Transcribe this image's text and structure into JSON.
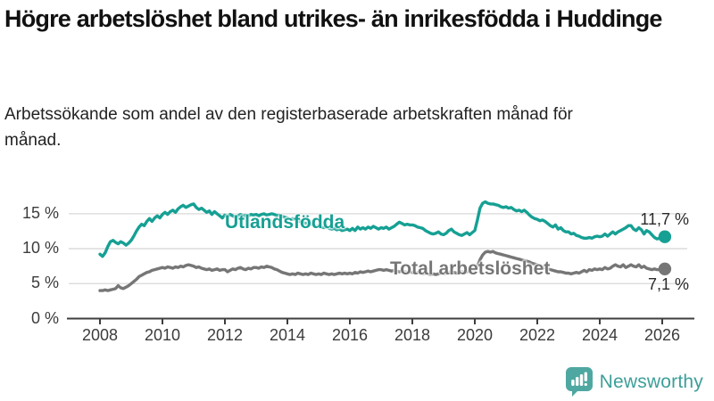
{
  "header": {
    "title": "Högre arbetslöshet bland utrikes- än inrikesfödda i Huddinge",
    "subtitle": "Arbetssökande som andel av den registerbaserade arbetskraften månad för månad."
  },
  "chart_data": {
    "type": "line",
    "x_start_year": 2008,
    "x_start_month": 1,
    "frequency": "monthly",
    "x_ticks": [
      2008,
      2010,
      2012,
      2014,
      2016,
      2018,
      2020,
      2022,
      2024,
      2026
    ],
    "y_ticks": [
      {
        "label": "0 %",
        "value": 0
      },
      {
        "label": "5 %",
        "value": 5
      },
      {
        "label": "10 %",
        "value": 10
      },
      {
        "label": "15 %",
        "value": 15
      }
    ],
    "ylim": [
      0,
      17.5
    ],
    "grid": "horizontal",
    "legend_position": "inline-labels",
    "series": [
      {
        "name": "Utlandsfödda",
        "color": "#16A094",
        "end_label": "11,7 %",
        "end_value": 11.7,
        "values": [
          9.2,
          8.9,
          9.4,
          10.3,
          11.0,
          11.2,
          10.9,
          10.7,
          11.0,
          10.8,
          10.5,
          10.8,
          11.2,
          11.8,
          12.5,
          13.1,
          13.5,
          13.3,
          13.9,
          14.3,
          13.9,
          14.4,
          14.7,
          14.4,
          14.9,
          15.2,
          14.9,
          15.3,
          15.5,
          15.2,
          15.7,
          16.0,
          16.2,
          15.9,
          16.1,
          16.3,
          16.4,
          15.9,
          15.6,
          15.8,
          15.5,
          15.2,
          15.4,
          14.9,
          15.3,
          15.0,
          14.7,
          14.4,
          14.8,
          14.6,
          14.9,
          14.7,
          14.5,
          14.7,
          14.9,
          14.6,
          14.8,
          14.7,
          14.9,
          14.8,
          14.9,
          14.7,
          14.9,
          15.0,
          14.8,
          14.9,
          15.0,
          14.9,
          14.7,
          14.8,
          14.6,
          14.5,
          14.4,
          14.2,
          14.3,
          14.1,
          13.9,
          14.0,
          13.8,
          13.6,
          13.7,
          13.5,
          13.4,
          13.2,
          13.3,
          13.1,
          13.0,
          13.1,
          12.9,
          12.8,
          12.9,
          12.7,
          12.8,
          12.6,
          12.7,
          12.8,
          12.6,
          12.9,
          12.6,
          13.1,
          12.8,
          13.0,
          12.8,
          13.1,
          12.9,
          13.2,
          13.0,
          12.8,
          13.0,
          12.9,
          13.1,
          12.8,
          13.0,
          13.2,
          13.5,
          13.8,
          13.6,
          13.4,
          13.5,
          13.4,
          13.4,
          13.3,
          13.1,
          13.0,
          12.9,
          12.6,
          12.4,
          12.2,
          12.1,
          12.2,
          12.4,
          12.1,
          12.0,
          12.2,
          12.6,
          12.8,
          12.4,
          12.2,
          12.0,
          11.9,
          12.1,
          12.3,
          12.0,
          12.3,
          12.6,
          14.1,
          15.8,
          16.5,
          16.7,
          16.5,
          16.4,
          16.4,
          16.3,
          16.2,
          16.0,
          15.9,
          16.0,
          15.8,
          15.9,
          15.6,
          15.4,
          15.5,
          15.3,
          15.5,
          15.2,
          14.8,
          14.5,
          14.3,
          14.2,
          14.0,
          14.1,
          13.9,
          13.6,
          13.3,
          13.1,
          13.4,
          12.8,
          13.0,
          12.6,
          12.4,
          12.4,
          12.1,
          12.2,
          11.9,
          11.8,
          11.6,
          11.5,
          11.5,
          11.6,
          11.5,
          11.7,
          11.8,
          11.7,
          11.8,
          12.1,
          11.8,
          12.1,
          12.4,
          12.1,
          12.4,
          12.6,
          12.8,
          13.0,
          13.3,
          13.3,
          12.8,
          12.6,
          13.0,
          12.7,
          12.1,
          12.6,
          12.4,
          12.0,
          11.6,
          11.4,
          11.5,
          11.4,
          11.7
        ]
      },
      {
        "name": "Total arbetslöshet",
        "color": "#767676",
        "end_label": "7,1 %",
        "end_value": 7.1,
        "values": [
          4.0,
          4.0,
          4.1,
          4.0,
          4.1,
          4.2,
          4.3,
          4.7,
          4.4,
          4.3,
          4.5,
          4.7,
          5.0,
          5.3,
          5.6,
          6.0,
          6.2,
          6.4,
          6.6,
          6.7,
          6.9,
          7.0,
          7.1,
          7.2,
          7.3,
          7.2,
          7.4,
          7.3,
          7.2,
          7.4,
          7.3,
          7.5,
          7.4,
          7.6,
          7.7,
          7.6,
          7.5,
          7.3,
          7.4,
          7.2,
          7.1,
          7.0,
          7.1,
          6.9,
          7.0,
          7.1,
          6.9,
          7.0,
          7.0,
          6.7,
          6.9,
          7.1,
          7.0,
          7.2,
          7.3,
          7.1,
          7.0,
          7.2,
          7.1,
          7.3,
          7.3,
          7.2,
          7.4,
          7.3,
          7.5,
          7.4,
          7.3,
          7.1,
          7.0,
          6.8,
          6.6,
          6.5,
          6.4,
          6.3,
          6.4,
          6.3,
          6.5,
          6.4,
          6.3,
          6.4,
          6.3,
          6.5,
          6.4,
          6.3,
          6.4,
          6.3,
          6.5,
          6.4,
          6.3,
          6.4,
          6.3,
          6.4,
          6.5,
          6.4,
          6.5,
          6.4,
          6.5,
          6.4,
          6.6,
          6.5,
          6.7,
          6.6,
          6.7,
          6.8,
          6.7,
          6.8,
          6.9,
          7.0,
          7.0,
          6.9,
          7.0,
          6.9,
          6.8,
          6.9,
          6.8,
          6.7,
          6.8,
          6.7,
          6.6,
          6.7,
          6.6,
          6.5,
          6.6,
          6.5,
          6.4,
          6.5,
          6.4,
          6.3,
          6.4,
          6.3,
          6.4,
          6.5,
          6.4,
          6.5,
          6.6,
          6.5,
          6.6,
          6.5,
          6.6,
          6.7,
          6.6,
          6.7,
          6.8,
          6.9,
          7.0,
          7.5,
          8.4,
          9.1,
          9.5,
          9.6,
          9.5,
          9.6,
          9.4,
          9.3,
          9.2,
          9.1,
          9.0,
          8.9,
          8.8,
          8.7,
          8.6,
          8.5,
          8.4,
          8.3,
          8.2,
          8.1,
          7.9,
          7.8,
          7.7,
          7.5,
          7.4,
          7.2,
          7.1,
          7.0,
          6.9,
          6.8,
          6.7,
          6.7,
          6.6,
          6.5,
          6.5,
          6.4,
          6.5,
          6.6,
          6.5,
          6.7,
          6.9,
          6.7,
          7.0,
          6.9,
          7.1,
          7.0,
          7.1,
          7.0,
          7.3,
          7.1,
          7.2,
          7.5,
          7.7,
          7.5,
          7.4,
          7.7,
          7.3,
          7.5,
          7.7,
          7.5,
          7.4,
          7.7,
          7.3,
          7.5,
          7.2,
          7.1,
          7.0,
          7.1,
          7.0,
          7.0,
          7.0,
          7.1
        ]
      }
    ],
    "colors": {
      "grid": "#D8D8D8",
      "axis": "#3E3E3E",
      "tick_text": "#3C3C3C"
    }
  },
  "branding": {
    "logo_text": "Newsworthy",
    "logo_color": "#4FA7A1",
    "logo_icon": "bar-chart-speech-bubble"
  }
}
